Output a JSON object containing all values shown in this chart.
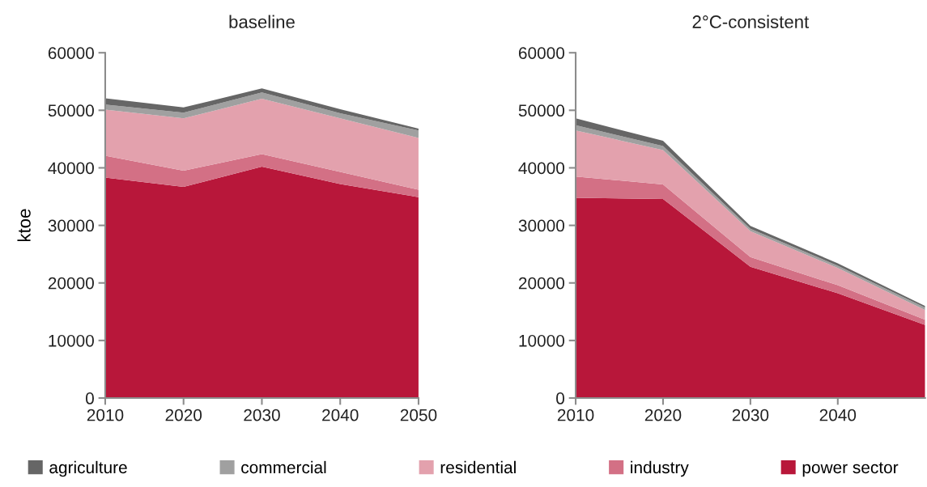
{
  "chart_data": [
    {
      "type": "area",
      "stacked": true,
      "title": "baseline",
      "ylabel": "ktoe",
      "x": [
        2010,
        2020,
        2030,
        2040,
        2050
      ],
      "xlim": [
        2010,
        2050
      ],
      "xticks": [
        2010,
        2020,
        2030,
        2040,
        2050
      ],
      "ylim": [
        0,
        60000
      ],
      "yticks": [
        0,
        10000,
        20000,
        30000,
        40000,
        50000,
        60000
      ],
      "grid": false,
      "legend": "bottom",
      "series": [
        {
          "name": "power sector",
          "color": "#b8173a",
          "values": [
            38300,
            36700,
            40200,
            37200,
            34900
          ]
        },
        {
          "name": "industry",
          "color": "#d37085",
          "values": [
            3800,
            2800,
            2200,
            2100,
            1300
          ]
        },
        {
          "name": "residential",
          "color": "#e3a1ad",
          "values": [
            8000,
            9100,
            9600,
            9300,
            9000
          ]
        },
        {
          "name": "commercial",
          "color": "#a0a0a0",
          "values": [
            900,
            1000,
            1100,
            900,
            1300
          ]
        },
        {
          "name": "agriculture",
          "color": "#666666",
          "values": [
            1100,
            900,
            700,
            700,
            300
          ]
        }
      ]
    },
    {
      "type": "area",
      "stacked": true,
      "title": "2°C-consistent",
      "x": [
        2010,
        2020,
        2030,
        2040,
        2050
      ],
      "xlim": [
        2010,
        2050
      ],
      "xticks": [
        2010,
        2020,
        2030,
        2040
      ],
      "ylim": [
        0,
        60000
      ],
      "yticks": [
        0,
        10000,
        20000,
        30000,
        40000,
        50000,
        60000
      ],
      "grid": false,
      "series": [
        {
          "color": "#b8173a",
          "values": [
            34800,
            34600,
            22800,
            18200,
            12700
          ]
        },
        {
          "color": "#d37085",
          "values": [
            3700,
            2500,
            1700,
            1400,
            900
          ]
        },
        {
          "color": "#e3a1ad",
          "values": [
            8000,
            6000,
            4500,
            3000,
            1700
          ]
        },
        {
          "color": "#a0a0a0",
          "values": [
            900,
            700,
            400,
            400,
            400
          ]
        },
        {
          "color": "#666666",
          "values": [
            1200,
            900,
            500,
            400,
            300
          ]
        }
      ]
    }
  ]
}
